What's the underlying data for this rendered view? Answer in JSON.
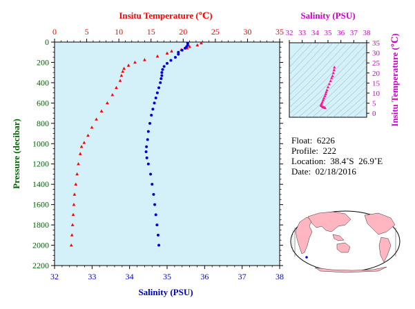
{
  "main_chart": {
    "top_axis_title": "Insitu Temperature (℃)",
    "bottom_axis_title": "Salinity (PSU)",
    "left_axis_title": "Pressure (decibar)",
    "temperature_ticks": [
      "0",
      "5",
      "10",
      "15",
      "20",
      "25",
      "30",
      "35"
    ],
    "salinity_ticks": [
      "32",
      "33",
      "34",
      "35",
      "36",
      "37",
      "38"
    ],
    "pressure_ticks": [
      "0",
      "200",
      "400",
      "600",
      "800",
      "1000",
      "1200",
      "1400",
      "1600",
      "1800",
      "2000",
      "2200"
    ]
  },
  "ts_chart": {
    "top_axis_title": "Salinity (PSU)",
    "right_axis_title": "Insitu Temperature (℃)",
    "salinity_ticks": [
      "32",
      "33",
      "34",
      "35",
      "36",
      "37",
      "38"
    ],
    "temperature_ticks": [
      "0",
      "5",
      "10",
      "15",
      "20",
      "25",
      "30",
      "35"
    ]
  },
  "float_info": {
    "float": "Float:  6226",
    "profile": "Profile:  222",
    "location": "Location:  38.4˚S  26.9˚E",
    "date": "Date:  02/18/2016"
  },
  "footer_note": "",
  "colors": {
    "temperature": "#ff0000",
    "salinity": "#0000dd",
    "ts_marker": "#ff1493",
    "axis_temperature": "#ff0000",
    "axis_salinity": "#0000cc",
    "axis_pressure": "#006400",
    "ts_axis": "#cc00cc",
    "plot_background": "#d4f0f8",
    "land": "#ffb6c1",
    "ocean": "#ffffff"
  },
  "chart_data": [
    {
      "type": "scatter",
      "title": "",
      "x_top_label": "Insitu Temperature (℃)",
      "x_bottom_label": "Salinity (PSU)",
      "ylabel": "Pressure (decibar)",
      "temperature_range": [
        0,
        35
      ],
      "salinity_range": [
        32,
        38
      ],
      "pressure_range": [
        0,
        2200
      ],
      "y_inverted": true,
      "series": [
        {
          "name": "Insitu Temperature (℃)",
          "marker": "triangle",
          "points": [
            [
              22.8,
              10
            ],
            [
              22.2,
              30
            ],
            [
              21.0,
              45
            ],
            [
              20.6,
              60
            ],
            [
              19.7,
              75
            ],
            [
              18.2,
              90
            ],
            [
              17.5,
              110
            ],
            [
              16.0,
              140
            ],
            [
              14.0,
              175
            ],
            [
              12.5,
              200
            ],
            [
              11.5,
              230
            ],
            [
              10.8,
              260
            ],
            [
              10.6,
              290
            ],
            [
              10.4,
              330
            ],
            [
              10.2,
              380
            ],
            [
              9.6,
              450
            ],
            [
              9.0,
              520
            ],
            [
              8.2,
              600
            ],
            [
              7.3,
              680
            ],
            [
              6.5,
              760
            ],
            [
              5.8,
              840
            ],
            [
              5.2,
              920
            ],
            [
              4.6,
              990
            ],
            [
              4.2,
              1030
            ],
            [
              4.0,
              1100
            ],
            [
              3.7,
              1200
            ],
            [
              3.5,
              1300
            ],
            [
              3.3,
              1400
            ],
            [
              3.1,
              1500
            ],
            [
              3.0,
              1600
            ],
            [
              2.9,
              1700
            ],
            [
              2.8,
              1800
            ],
            [
              2.7,
              1900
            ],
            [
              2.6,
              2000
            ]
          ]
        },
        {
          "name": "Salinity (PSU)",
          "marker": "circle",
          "points": [
            [
              35.55,
              10
            ],
            [
              35.55,
              30
            ],
            [
              35.52,
              45
            ],
            [
              35.48,
              60
            ],
            [
              35.4,
              80
            ],
            [
              35.3,
              100
            ],
            [
              35.3,
              120
            ],
            [
              35.22,
              150
            ],
            [
              35.1,
              180
            ],
            [
              35.0,
              210
            ],
            [
              34.92,
              240
            ],
            [
              34.88,
              270
            ],
            [
              34.86,
              300
            ],
            [
              34.86,
              330
            ],
            [
              34.84,
              360
            ],
            [
              34.82,
              400
            ],
            [
              34.78,
              450
            ],
            [
              34.74,
              500
            ],
            [
              34.7,
              550
            ],
            [
              34.66,
              600
            ],
            [
              34.62,
              660
            ],
            [
              34.58,
              720
            ],
            [
              34.54,
              800
            ],
            [
              34.5,
              880
            ],
            [
              34.48,
              960
            ],
            [
              34.45,
              1030
            ],
            [
              34.44,
              1080
            ],
            [
              34.46,
              1140
            ],
            [
              34.5,
              1200
            ],
            [
              34.56,
              1300
            ],
            [
              34.6,
              1400
            ],
            [
              34.64,
              1500
            ],
            [
              34.67,
              1600
            ],
            [
              34.7,
              1700
            ],
            [
              34.73,
              1800
            ],
            [
              34.76,
              1900
            ],
            [
              34.78,
              2000
            ]
          ]
        }
      ]
    },
    {
      "type": "scatter",
      "title": "",
      "xlabel": "Salinity (PSU)",
      "ylabel": "Insitu Temperature (℃)",
      "xlim": [
        32,
        38
      ],
      "ylim": [
        -2,
        35
      ],
      "series": [
        {
          "name": "T-S",
          "marker": "triangle",
          "points": [
            [
              35.5,
              22.8
            ],
            [
              35.47,
              21.5
            ],
            [
              35.42,
              20.0
            ],
            [
              35.35,
              18.5
            ],
            [
              35.28,
              17.5
            ],
            [
              35.2,
              16.0
            ],
            [
              35.1,
              14.5
            ],
            [
              35.0,
              13.0
            ],
            [
              34.92,
              11.5
            ],
            [
              34.86,
              10.5
            ],
            [
              34.82,
              9.5
            ],
            [
              34.76,
              8.5
            ],
            [
              34.68,
              7.5
            ],
            [
              34.62,
              6.5
            ],
            [
              34.56,
              5.5
            ],
            [
              34.5,
              4.8
            ],
            [
              34.46,
              4.2
            ],
            [
              34.48,
              3.7
            ],
            [
              34.56,
              3.3
            ],
            [
              34.64,
              3.0
            ],
            [
              34.72,
              2.8
            ],
            [
              34.78,
              2.6
            ]
          ]
        }
      ]
    }
  ]
}
